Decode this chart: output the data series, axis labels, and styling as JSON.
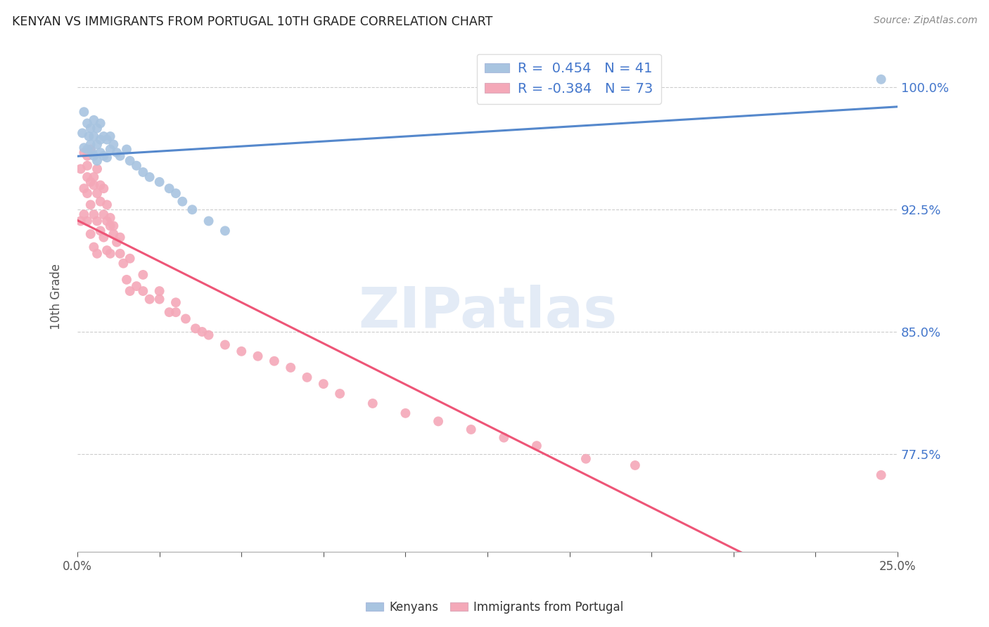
{
  "title": "KENYAN VS IMMIGRANTS FROM PORTUGAL 10TH GRADE CORRELATION CHART",
  "source": "Source: ZipAtlas.com",
  "ylabel": "10th Grade",
  "y_ticks": [
    "77.5%",
    "85.0%",
    "92.5%",
    "100.0%"
  ],
  "y_tick_vals": [
    0.775,
    0.85,
    0.925,
    1.0
  ],
  "x_lim": [
    0.0,
    0.25
  ],
  "y_lim": [
    0.715,
    1.028
  ],
  "legend_line1": "R =  0.454   N = 41",
  "legend_line2": "R = -0.384   N = 73",
  "blue_color": "#A8C4E0",
  "pink_color": "#F4A8B8",
  "blue_line_color": "#5588CC",
  "pink_line_color": "#EE5577",
  "watermark": "ZIPatlas",
  "watermark_color": "#C8D8EE",
  "legend_text_color": "#4477CC",
  "kenyan_x": [
    0.0015,
    0.002,
    0.002,
    0.003,
    0.003,
    0.0035,
    0.004,
    0.004,
    0.0045,
    0.005,
    0.005,
    0.005,
    0.006,
    0.006,
    0.006,
    0.007,
    0.007,
    0.007,
    0.008,
    0.008,
    0.009,
    0.009,
    0.01,
    0.01,
    0.011,
    0.012,
    0.013,
    0.015,
    0.016,
    0.018,
    0.02,
    0.022,
    0.025,
    0.028,
    0.03,
    0.032,
    0.035,
    0.04,
    0.045,
    0.13,
    0.245
  ],
  "kenyan_y": [
    0.972,
    0.985,
    0.963,
    0.978,
    0.962,
    0.97,
    0.975,
    0.965,
    0.96,
    0.98,
    0.97,
    0.958,
    0.975,
    0.965,
    0.955,
    0.978,
    0.968,
    0.96,
    0.97,
    0.958,
    0.968,
    0.957,
    0.97,
    0.962,
    0.965,
    0.96,
    0.958,
    0.962,
    0.955,
    0.952,
    0.948,
    0.945,
    0.942,
    0.938,
    0.935,
    0.93,
    0.925,
    0.918,
    0.912,
    1.002,
    1.005
  ],
  "portugal_x": [
    0.001,
    0.001,
    0.002,
    0.002,
    0.003,
    0.003,
    0.003,
    0.004,
    0.004,
    0.004,
    0.005,
    0.005,
    0.005,
    0.006,
    0.006,
    0.006,
    0.007,
    0.007,
    0.008,
    0.008,
    0.009,
    0.009,
    0.01,
    0.01,
    0.011,
    0.012,
    0.013,
    0.014,
    0.015,
    0.016,
    0.018,
    0.02,
    0.022,
    0.025,
    0.028,
    0.03,
    0.033,
    0.036,
    0.04,
    0.045,
    0.05,
    0.055,
    0.06,
    0.065,
    0.07,
    0.075,
    0.08,
    0.09,
    0.1,
    0.11,
    0.12,
    0.13,
    0.14,
    0.155,
    0.17,
    0.245,
    0.002,
    0.003,
    0.003,
    0.004,
    0.005,
    0.006,
    0.007,
    0.008,
    0.009,
    0.01,
    0.011,
    0.013,
    0.016,
    0.02,
    0.025,
    0.03,
    0.038
  ],
  "portugal_y": [
    0.95,
    0.918,
    0.938,
    0.922,
    0.952,
    0.935,
    0.918,
    0.942,
    0.928,
    0.91,
    0.94,
    0.922,
    0.902,
    0.935,
    0.918,
    0.898,
    0.93,
    0.912,
    0.922,
    0.908,
    0.918,
    0.9,
    0.915,
    0.898,
    0.91,
    0.905,
    0.898,
    0.892,
    0.882,
    0.875,
    0.878,
    0.875,
    0.87,
    0.87,
    0.862,
    0.862,
    0.858,
    0.852,
    0.848,
    0.842,
    0.838,
    0.835,
    0.832,
    0.828,
    0.822,
    0.818,
    0.812,
    0.806,
    0.8,
    0.795,
    0.79,
    0.785,
    0.78,
    0.772,
    0.768,
    0.762,
    0.96,
    0.958,
    0.945,
    0.962,
    0.945,
    0.95,
    0.94,
    0.938,
    0.928,
    0.92,
    0.915,
    0.908,
    0.895,
    0.885,
    0.875,
    0.868,
    0.85
  ]
}
